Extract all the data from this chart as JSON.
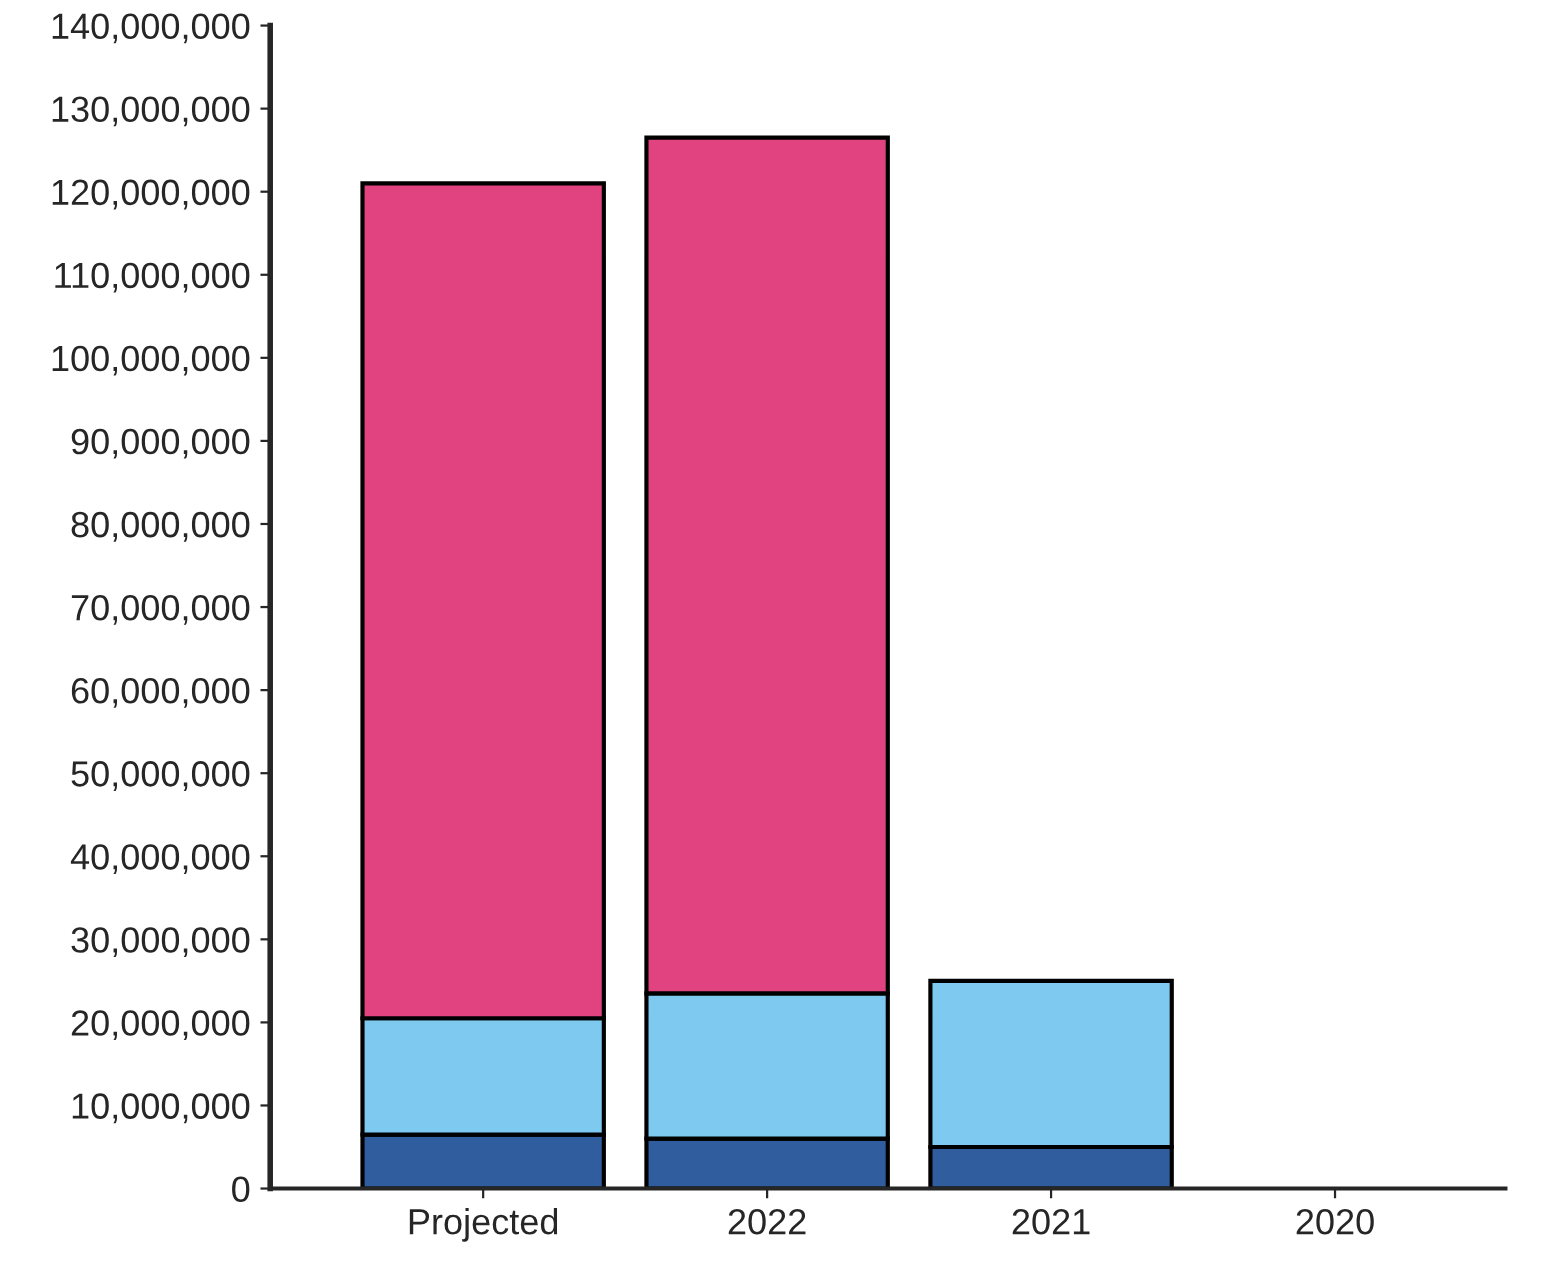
{
  "chart_data": {
    "type": "bar",
    "stacked": true,
    "categories": [
      "Projected",
      "2022",
      "2021",
      "2020"
    ],
    "series": [
      {
        "color": "#2f5d9e",
        "values": [
          6500000,
          6000000,
          5000000,
          0
        ]
      },
      {
        "color": "#7ec9ef",
        "values": [
          14000000,
          17500000,
          20000000,
          0
        ]
      },
      {
        "color": "#e0437f",
        "values": [
          100500000,
          103000000,
          0,
          0
        ]
      }
    ],
    "ylim": [
      0,
      140000000
    ],
    "yticks": [
      {
        "value": 0,
        "label": "0"
      },
      {
        "value": 10000000,
        "label": "10,000,000"
      },
      {
        "value": 20000000,
        "label": "20,000,000"
      },
      {
        "value": 30000000,
        "label": "30,000,000"
      },
      {
        "value": 40000000,
        "label": "40,000,000"
      },
      {
        "value": 50000000,
        "label": "50,000,000"
      },
      {
        "value": 60000000,
        "label": "60,000,000"
      },
      {
        "value": 70000000,
        "label": "70,000,000"
      },
      {
        "value": 80000000,
        "label": "80,000,000"
      },
      {
        "value": 90000000,
        "label": "90,000,000"
      },
      {
        "value": 100000000,
        "label": "100,000,000"
      },
      {
        "value": 110000000,
        "label": "110,000,000"
      },
      {
        "value": 120000000,
        "label": "120,000,000"
      },
      {
        "value": 130000000,
        "label": "130,000,000"
      },
      {
        "value": 140000000,
        "label": "140,000,000"
      }
    ],
    "grid": false,
    "legend": false
  }
}
